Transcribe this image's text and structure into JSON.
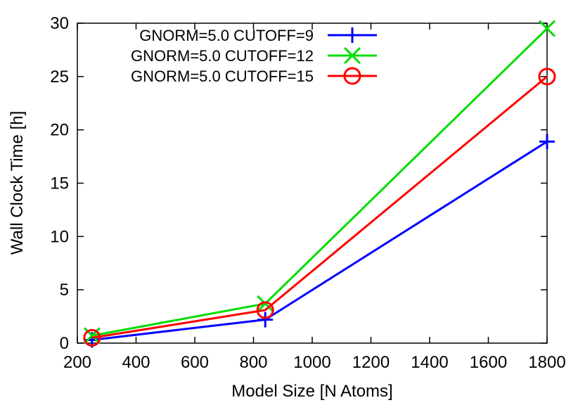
{
  "chart_data": {
    "type": "line",
    "title": "",
    "xlabel": "Model Size [N Atoms]",
    "ylabel": "Wall Clock Time [h]",
    "xlim": [
      200,
      1800
    ],
    "ylim": [
      0,
      30
    ],
    "xticks": [
      200,
      400,
      600,
      800,
      1000,
      1200,
      1400,
      1600,
      1800
    ],
    "yticks": [
      0,
      5,
      10,
      15,
      20,
      25,
      30
    ],
    "grid": false,
    "legend_position": "top-right",
    "x": [
      250,
      840,
      1800
    ],
    "series": [
      {
        "name": "GNORM=5.0 CUTOFF=9",
        "values": [
          0.3,
          2.2,
          18.9
        ],
        "color": "#0000ff",
        "marker": "plus"
      },
      {
        "name": "GNORM=5.0 CUTOFF=12",
        "values": [
          0.7,
          3.7,
          29.5
        ],
        "color": "#00dd00",
        "marker": "cross"
      },
      {
        "name": "GNORM=5.0 CUTOFF=15",
        "values": [
          0.5,
          3.1,
          25.0
        ],
        "color": "#ff0000",
        "marker": "circle"
      }
    ]
  }
}
